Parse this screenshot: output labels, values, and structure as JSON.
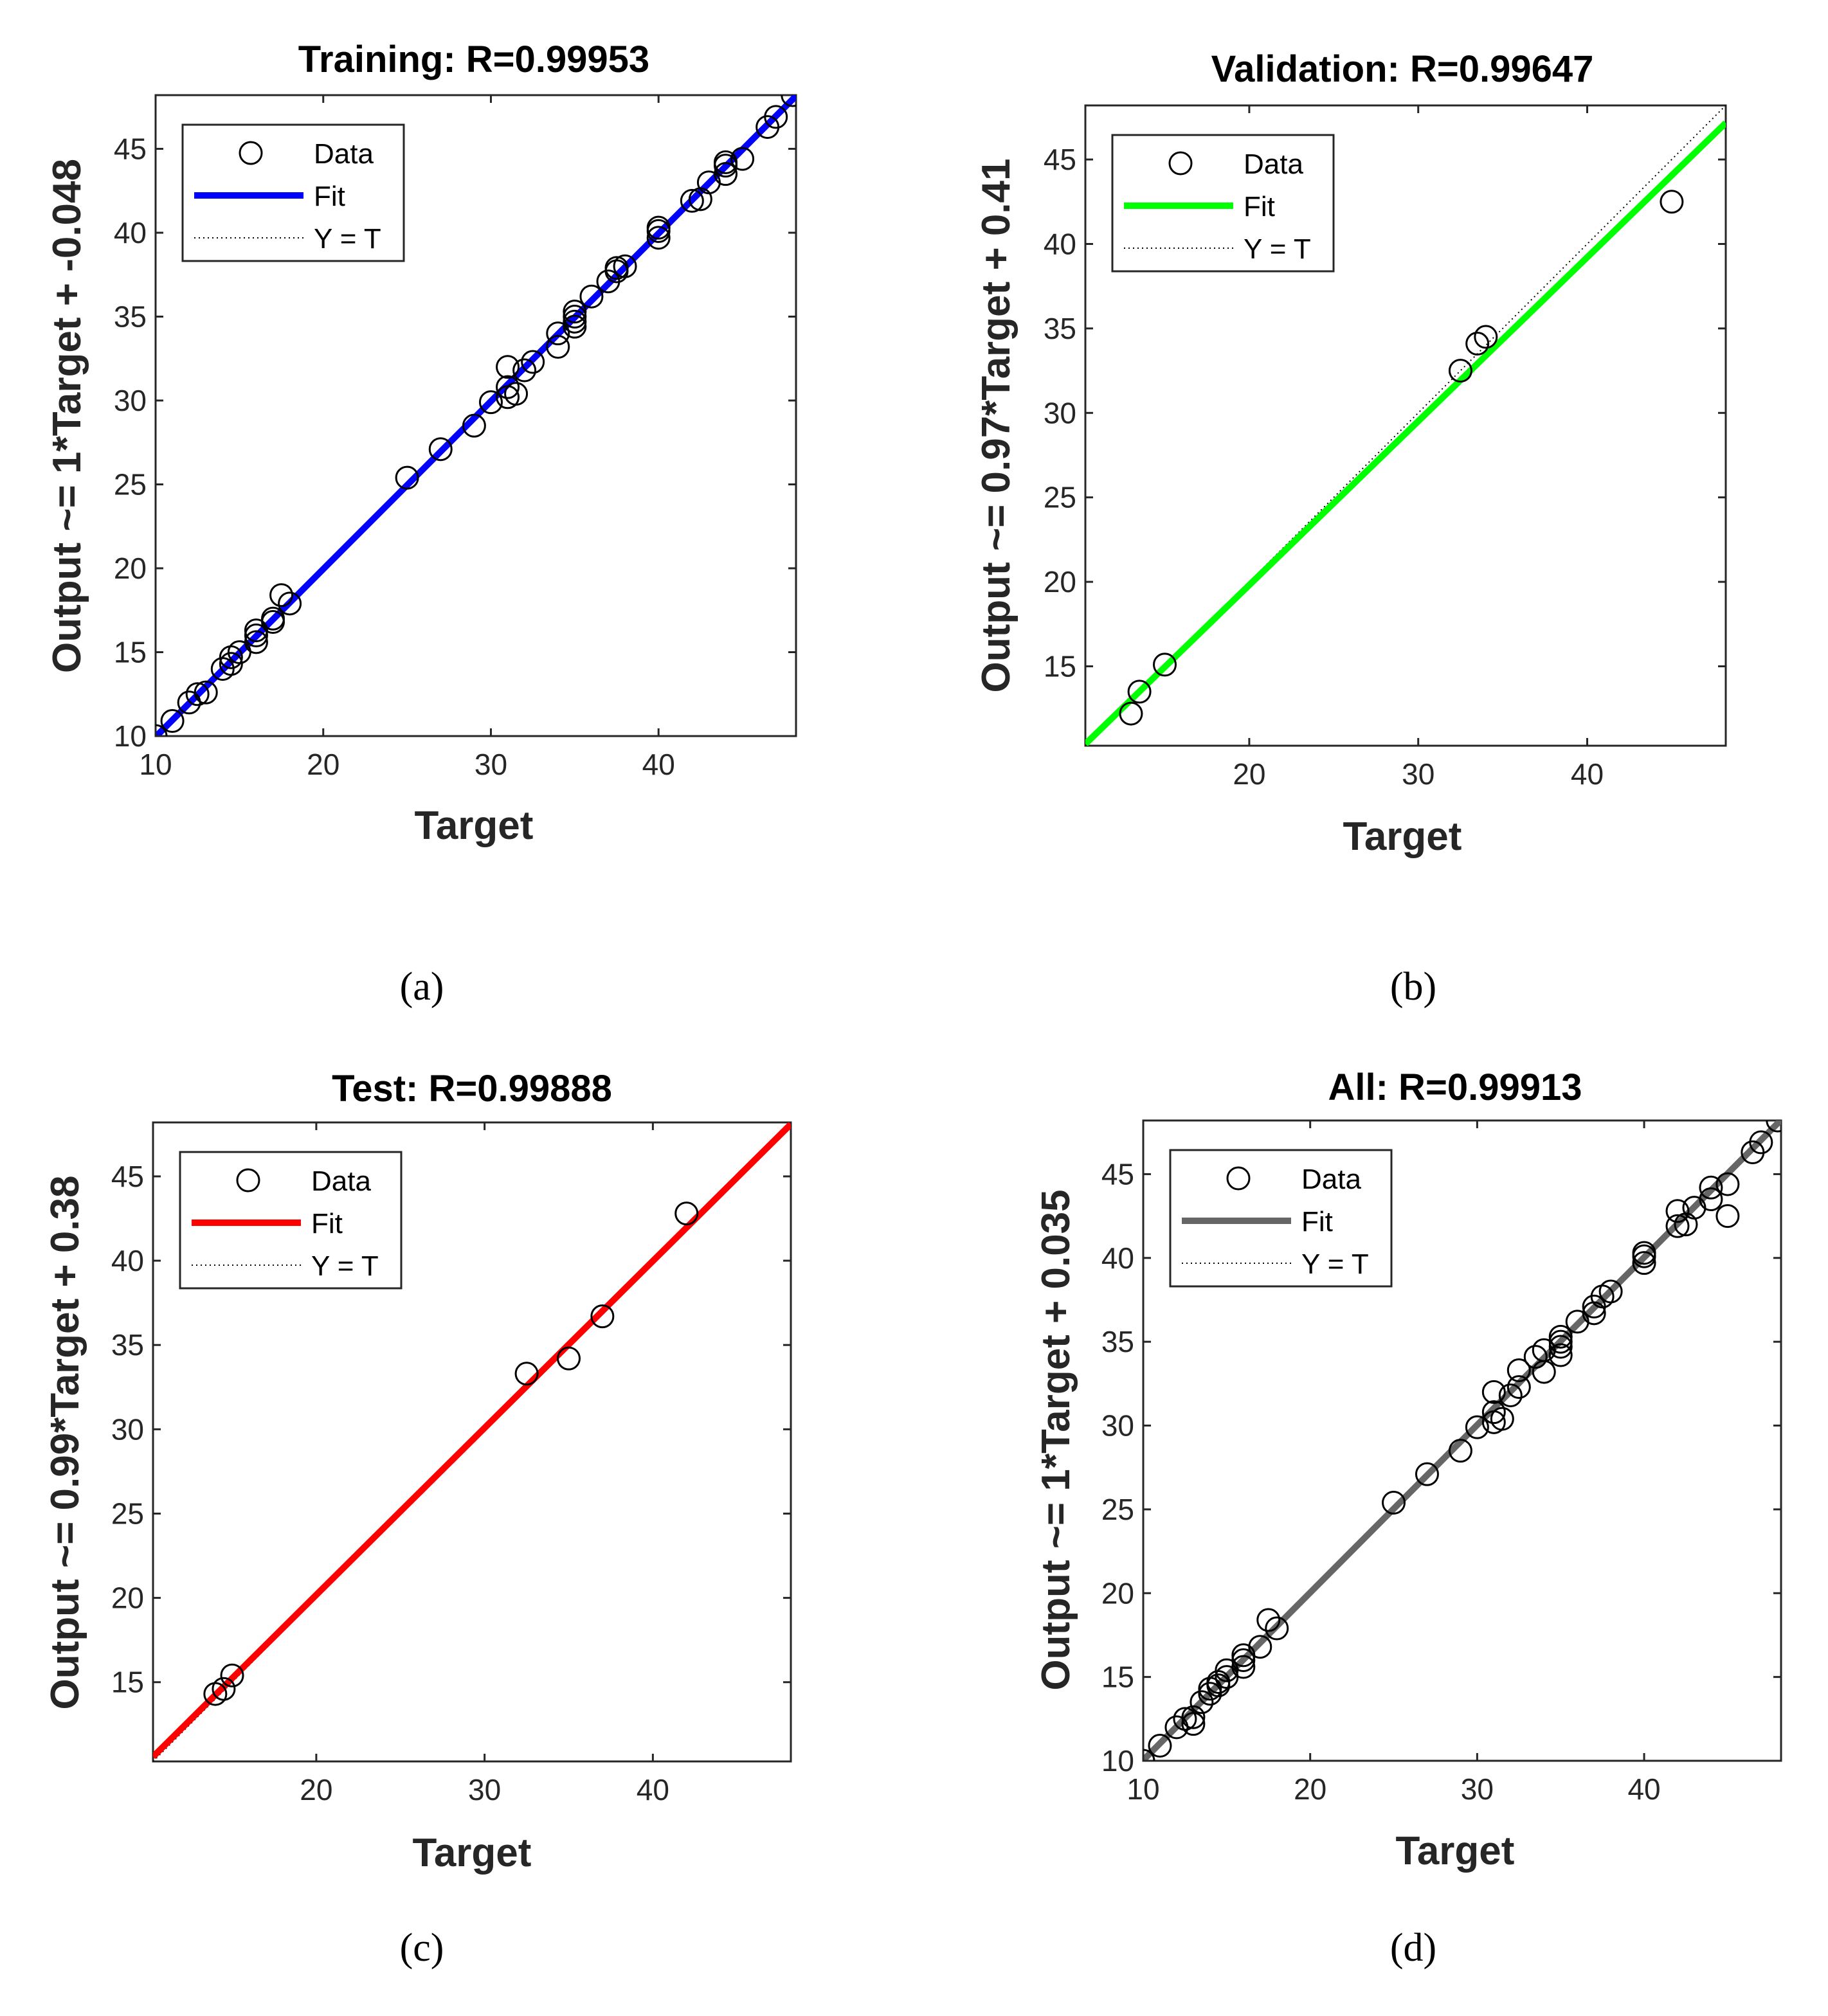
{
  "chart_data": [
    {
      "type": "scatter",
      "panel_label": "(a)",
      "title": "Training: R=0.99953",
      "xlabel": "Target",
      "ylabel": "Output ~= 1*Target + -0.048",
      "xlim": [
        10,
        48.2
      ],
      "ylim": [
        10,
        48.2
      ],
      "xticks": [
        10,
        20,
        30,
        40
      ],
      "yticks": [
        10,
        15,
        20,
        25,
        30,
        35,
        40,
        45
      ],
      "fit": {
        "slope": 1.0,
        "intercept": -0.048,
        "color": "#0000ff"
      },
      "legend": {
        "placement": "top-left",
        "entries": [
          "Data",
          "Fit",
          "Y = T"
        ]
      },
      "points": [
        [
          10,
          10
        ],
        [
          11,
          10.9
        ],
        [
          12,
          12
        ],
        [
          12.5,
          12.5
        ],
        [
          13,
          12.6
        ],
        [
          14,
          14
        ],
        [
          14.5,
          14.3
        ],
        [
          14.5,
          14.7
        ],
        [
          15,
          15
        ],
        [
          16,
          15.6
        ],
        [
          16,
          16
        ],
        [
          16,
          16.3
        ],
        [
          17,
          16.8
        ],
        [
          17,
          17
        ],
        [
          17.5,
          18.4
        ],
        [
          18,
          17.9
        ],
        [
          25,
          25.4
        ],
        [
          27,
          27.1
        ],
        [
          29,
          28.5
        ],
        [
          30,
          29.9
        ],
        [
          31,
          30.2
        ],
        [
          31,
          30.8
        ],
        [
          31,
          32
        ],
        [
          31.5,
          30.4
        ],
        [
          32,
          31.8
        ],
        [
          32.5,
          32.3
        ],
        [
          34,
          33.2
        ],
        [
          34,
          34
        ],
        [
          35,
          34.4
        ],
        [
          35,
          34.7
        ],
        [
          35,
          35
        ],
        [
          35,
          35.3
        ],
        [
          36,
          36.2
        ],
        [
          37,
          37.1
        ],
        [
          37.5,
          37.7
        ],
        [
          37.5,
          37.9
        ],
        [
          38,
          38
        ],
        [
          40,
          39.7
        ],
        [
          40,
          40.1
        ],
        [
          40,
          40.3
        ],
        [
          42,
          41.9
        ],
        [
          42.5,
          42
        ],
        [
          43,
          43
        ],
        [
          44,
          43.5
        ],
        [
          44,
          44
        ],
        [
          44,
          44.2
        ],
        [
          45,
          44.4
        ],
        [
          46.5,
          46.3
        ],
        [
          47,
          46.9
        ],
        [
          48,
          48.2
        ]
      ]
    },
    {
      "type": "scatter",
      "panel_label": "(b)",
      "title": "Validation: R=0.99647",
      "xlabel": "Target",
      "ylabel": "Output ~= 0.97*Target + 0.41",
      "xlim": [
        10.3,
        48.2
      ],
      "ylim": [
        10.3,
        48.2
      ],
      "xticks": [
        20,
        30,
        40
      ],
      "yticks": [
        15,
        20,
        25,
        30,
        35,
        40,
        45
      ],
      "fit": {
        "slope": 0.97,
        "intercept": 0.41,
        "color": "#00ff00"
      },
      "legend": {
        "placement": "top-left",
        "entries": [
          "Data",
          "Fit",
          "Y = T"
        ]
      },
      "points": [
        [
          13,
          12.2
        ],
        [
          13.5,
          13.5
        ],
        [
          15,
          15.1
        ],
        [
          32.5,
          32.5
        ],
        [
          33.5,
          34.1
        ],
        [
          34,
          34.5
        ],
        [
          45,
          42.5
        ]
      ]
    },
    {
      "type": "scatter",
      "panel_label": "(c)",
      "title": "Test: R=0.99888",
      "xlabel": "Target",
      "ylabel": "Output ~= 0.99*Target + 0.38",
      "xlim": [
        10.3,
        48.2
      ],
      "ylim": [
        10.3,
        48.2
      ],
      "xticks": [
        20,
        30,
        40
      ],
      "yticks": [
        15,
        20,
        25,
        30,
        35,
        40,
        45
      ],
      "fit": {
        "slope": 0.99,
        "intercept": 0.38,
        "color": "#ff0000"
      },
      "legend": {
        "placement": "top-left",
        "entries": [
          "Data",
          "Fit",
          "Y = T"
        ]
      },
      "points": [
        [
          14,
          14.3
        ],
        [
          14.5,
          14.6
        ],
        [
          15,
          15.4
        ],
        [
          32.5,
          33.3
        ],
        [
          35,
          34.2
        ],
        [
          37,
          36.7
        ],
        [
          42,
          42.8
        ]
      ]
    },
    {
      "type": "scatter",
      "panel_label": "(d)",
      "title": "All: R=0.99913",
      "xlabel": "Target",
      "ylabel": "Output ~= 1*Target + 0.035",
      "xlim": [
        10,
        48.2
      ],
      "ylim": [
        10,
        48.2
      ],
      "xticks": [
        10,
        20,
        30,
        40
      ],
      "yticks": [
        10,
        15,
        20,
        25,
        30,
        35,
        40,
        45
      ],
      "fit": {
        "slope": 1.0,
        "intercept": 0.035,
        "color": "#666666"
      },
      "legend": {
        "placement": "top-left",
        "entries": [
          "Data",
          "Fit",
          "Y = T"
        ]
      },
      "points": [
        [
          10,
          10
        ],
        [
          11,
          10.9
        ],
        [
          12,
          12
        ],
        [
          12.5,
          12.5
        ],
        [
          13,
          12.2
        ],
        [
          13,
          12.6
        ],
        [
          13.5,
          13.5
        ],
        [
          14,
          14
        ],
        [
          14,
          14.3
        ],
        [
          14.5,
          14.5
        ],
        [
          14.5,
          14.7
        ],
        [
          15,
          15
        ],
        [
          15,
          15.4
        ],
        [
          16,
          15.6
        ],
        [
          16,
          16
        ],
        [
          16,
          16.3
        ],
        [
          17,
          16.8
        ],
        [
          17.5,
          18.4
        ],
        [
          18,
          17.9
        ],
        [
          25,
          25.4
        ],
        [
          27,
          27.1
        ],
        [
          29,
          28.5
        ],
        [
          30,
          29.9
        ],
        [
          31,
          30.2
        ],
        [
          31,
          30.8
        ],
        [
          31,
          32
        ],
        [
          31.5,
          30.4
        ],
        [
          32,
          31.8
        ],
        [
          32.5,
          32.3
        ],
        [
          32.5,
          33.3
        ],
        [
          33.5,
          34.1
        ],
        [
          34,
          33.2
        ],
        [
          34,
          34.5
        ],
        [
          35,
          34.2
        ],
        [
          35,
          34.7
        ],
        [
          35,
          35
        ],
        [
          35,
          35.3
        ],
        [
          36,
          36.2
        ],
        [
          37,
          36.7
        ],
        [
          37,
          37.1
        ],
        [
          37.5,
          37.7
        ],
        [
          38,
          38
        ],
        [
          40,
          39.7
        ],
        [
          40,
          40.1
        ],
        [
          40,
          40.3
        ],
        [
          42,
          41.9
        ],
        [
          42,
          42.8
        ],
        [
          42.5,
          42
        ],
        [
          43,
          43
        ],
        [
          44,
          43.5
        ],
        [
          44,
          44.2
        ],
        [
          45,
          42.5
        ],
        [
          45,
          44.4
        ],
        [
          46.5,
          46.3
        ],
        [
          47,
          46.9
        ],
        [
          48,
          48.2
        ]
      ]
    }
  ]
}
